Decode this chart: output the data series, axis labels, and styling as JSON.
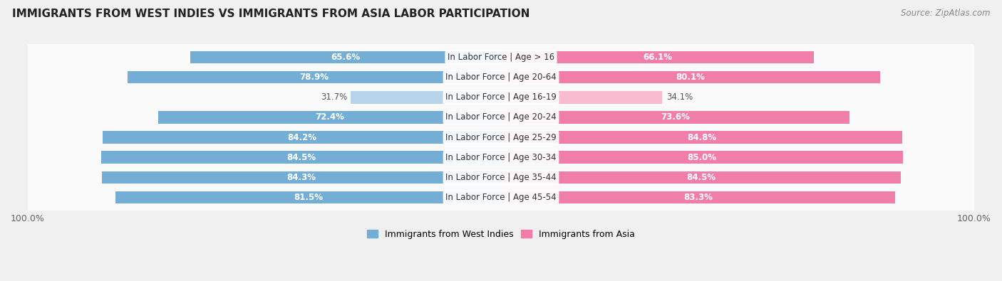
{
  "title": "IMMIGRANTS FROM WEST INDIES VS IMMIGRANTS FROM ASIA LABOR PARTICIPATION",
  "source": "Source: ZipAtlas.com",
  "categories": [
    "In Labor Force | Age > 16",
    "In Labor Force | Age 20-64",
    "In Labor Force | Age 16-19",
    "In Labor Force | Age 20-24",
    "In Labor Force | Age 25-29",
    "In Labor Force | Age 30-34",
    "In Labor Force | Age 35-44",
    "In Labor Force | Age 45-54"
  ],
  "west_indies_values": [
    65.6,
    78.9,
    31.7,
    72.4,
    84.2,
    84.5,
    84.3,
    81.5
  ],
  "asia_values": [
    66.1,
    80.1,
    34.1,
    73.6,
    84.8,
    85.0,
    84.5,
    83.3
  ],
  "west_indies_color": "#74aed4",
  "asia_color": "#f07ea8",
  "west_indies_light_color": "#b8d4ea",
  "asia_light_color": "#f8bbd0",
  "background_color": "#f0f0f0",
  "row_bg_light": "#fafafa",
  "row_bg_dark": "#f0f0f0",
  "legend_label_west": "Immigrants from West Indies",
  "legend_label_asia": "Immigrants from Asia",
  "max_value": 100.0,
  "bar_height": 0.62,
  "title_fontsize": 11,
  "label_fontsize": 8.5,
  "value_fontsize": 8.5
}
